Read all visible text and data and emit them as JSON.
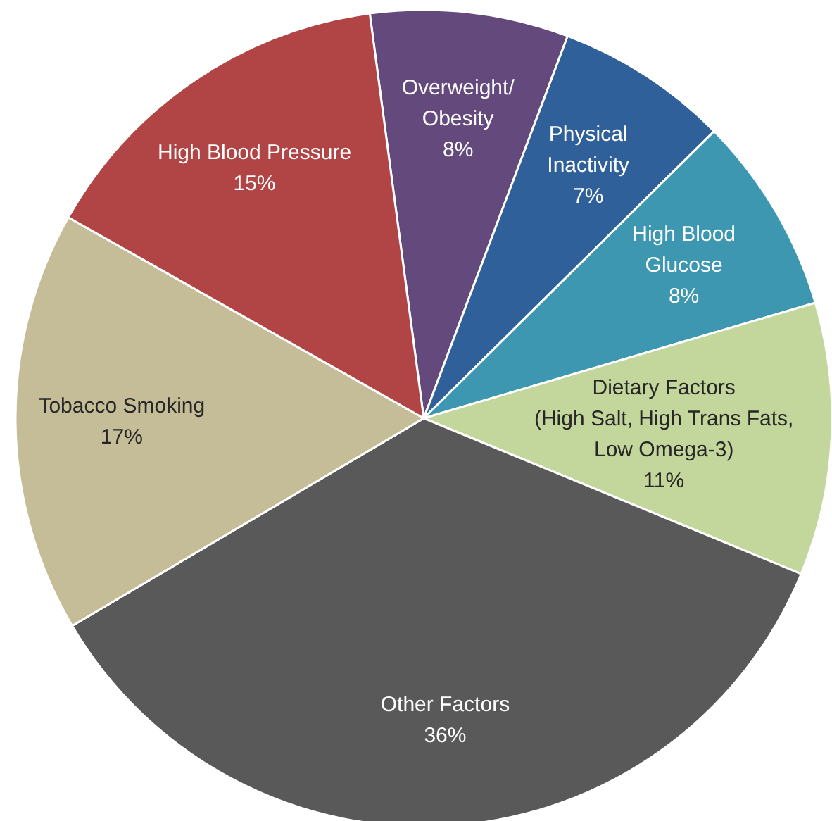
{
  "chart_data": {
    "type": "pie",
    "categories": [
      "Overweight/\nObesity",
      "Physical\nInactivity",
      "High Blood\nGlucose",
      "Dietary Factors\n(High Salt, High Trans Fats,\nLow Omega-3)",
      "Other Factors",
      "Tobacco Smoking",
      "High Blood Pressure"
    ],
    "values": [
      8,
      7,
      8,
      11,
      36,
      17,
      15
    ],
    "colors": [
      "#64497c",
      "#30609a",
      "#3d97b1",
      "#c3d69b",
      "#595959",
      "#c4bd97",
      "#b14444"
    ],
    "value_labels": [
      "8%",
      "7%",
      "8%",
      "11%",
      "36%",
      "17%",
      "15%"
    ]
  }
}
